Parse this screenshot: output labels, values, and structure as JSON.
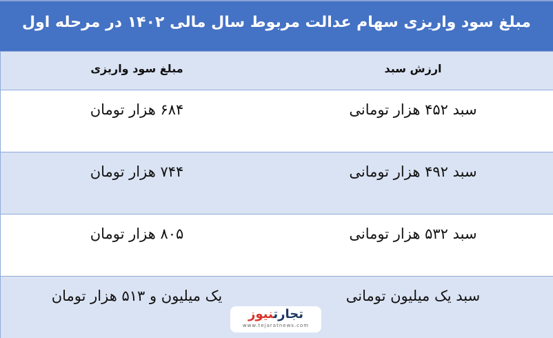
{
  "title": "مبلغ سود واریزی سهام عدالت مربوط سال مالی ۱۴۰۲ در مرحله اول",
  "headers": {
    "basket": "ارزش سبد",
    "payout": "مبلغ سود واریزی"
  },
  "rows": [
    {
      "basket": "سبد ۴۵۲ هزار تومانی",
      "payout": "۶۸۴ هزار تومان"
    },
    {
      "basket": "سبد ۴۹۲ هزار تومانی",
      "payout": "۷۴۴ هزار تومان"
    },
    {
      "basket": "سبد ۵۳۲ هزار تومانی",
      "payout": "۸۰۵ هزار تومان"
    },
    {
      "basket": "سبد یک میلیون تومانی",
      "payout": "یک میلیون و ۵۱۳ هزار تومان"
    }
  ],
  "logo": {
    "part1": "تجارت",
    "part2": "نیوز",
    "url": "www.tejaratnews.com"
  },
  "colors": {
    "title_bg": "#4472c4",
    "stripe": "#dae3f3",
    "accent": "#d9342b"
  }
}
